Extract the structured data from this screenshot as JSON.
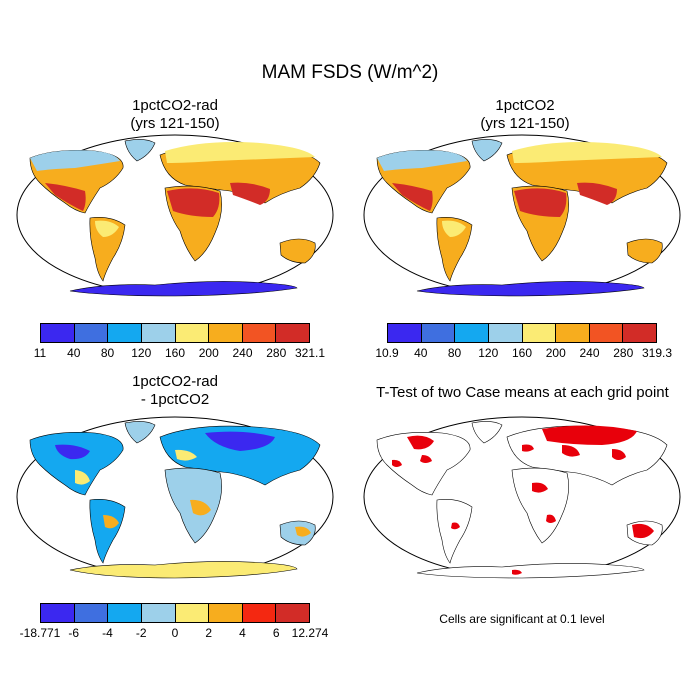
{
  "figure": {
    "title": "MAM FSDS (W/m^2)"
  },
  "panels": [
    {
      "title_line1": "1pctCO2-rad",
      "title_line2": "(yrs 121-150)",
      "colorbar_labels": [
        "11",
        "40",
        "80",
        "120",
        "160",
        "200",
        "240",
        "280",
        "321.1"
      ]
    },
    {
      "title_line1": "1pctCO2",
      "title_line2": "(yrs 121-150)",
      "colorbar_labels": [
        "10.9",
        "40",
        "80",
        "120",
        "160",
        "200",
        "240",
        "280",
        "319.3"
      ]
    },
    {
      "title_line1": "1pctCO2-rad",
      "title_line2": "- 1pctCO2",
      "colorbar_labels": [
        "-18.771",
        "-6",
        "-4",
        "-2",
        "0",
        "2",
        "4",
        "6",
        "12.274"
      ]
    },
    {
      "title_line1": "T-Test of two Case means at each grid point",
      "footnote": "Cells are significant at 0.1 level"
    }
  ],
  "colors": {
    "absolute_scale": [
      "#3b28f0",
      "#3f6fe0",
      "#14a8f0",
      "#9dd0ea",
      "#fbeb74",
      "#f7ad1e",
      "#f25423",
      "#d22c27"
    ],
    "difference_scale": [
      "#3b28f0",
      "#3f6fe0",
      "#14a8f0",
      "#9dd0ea",
      "#fbeb74",
      "#f7ad1e",
      "#f42811",
      "#d22c27"
    ],
    "significance": "#e8000b"
  }
}
